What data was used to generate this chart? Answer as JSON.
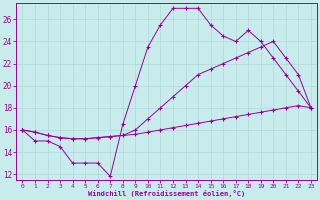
{
  "xlabel": "Windchill (Refroidissement éolien,°C)",
  "bg_color": "#c8ecec",
  "line_color": "#990099",
  "grid_color": "#b0d8d8",
  "xlim_min": -0.5,
  "xlim_max": 23.5,
  "ylim_min": 11.5,
  "ylim_max": 27.5,
  "yticks": [
    12,
    14,
    16,
    18,
    20,
    22,
    24,
    26
  ],
  "xticks": [
    0,
    1,
    2,
    3,
    4,
    5,
    6,
    7,
    8,
    9,
    10,
    11,
    12,
    13,
    14,
    15,
    16,
    17,
    18,
    19,
    20,
    21,
    22,
    23
  ],
  "line1_x": [
    0,
    1,
    2,
    3,
    4,
    5,
    6,
    7,
    8,
    9,
    10,
    11,
    12,
    13,
    14,
    15,
    16,
    17,
    18,
    19,
    20,
    21,
    22,
    23
  ],
  "line1_y": [
    16.0,
    15.0,
    15.0,
    14.5,
    13.0,
    13.0,
    13.0,
    11.8,
    16.5,
    20.0,
    23.5,
    25.5,
    27.0,
    27.0,
    27.0,
    25.5,
    24.5,
    24.0,
    25.0,
    24.0,
    22.5,
    21.0,
    19.5,
    18.0
  ],
  "line2_x": [
    0,
    1,
    2,
    3,
    4,
    5,
    6,
    7,
    8,
    9,
    10,
    11,
    12,
    13,
    14,
    15,
    16,
    17,
    18,
    19,
    20,
    21,
    22,
    23
  ],
  "line2_y": [
    16.0,
    15.8,
    15.5,
    15.3,
    15.2,
    15.2,
    15.3,
    15.4,
    15.5,
    15.6,
    15.8,
    16.0,
    16.2,
    16.4,
    16.6,
    16.8,
    17.0,
    17.2,
    17.4,
    17.6,
    17.8,
    18.0,
    18.2,
    18.0
  ],
  "line3_x": [
    0,
    1,
    2,
    3,
    4,
    5,
    6,
    7,
    8,
    9,
    10,
    11,
    12,
    13,
    14,
    15,
    16,
    17,
    18,
    19,
    20,
    21,
    22,
    23
  ],
  "line3_y": [
    16.0,
    15.8,
    15.5,
    15.3,
    15.2,
    15.2,
    15.3,
    15.4,
    15.5,
    16.0,
    17.0,
    18.0,
    19.0,
    20.0,
    21.0,
    21.5,
    22.0,
    22.5,
    23.0,
    23.5,
    24.0,
    22.5,
    21.0,
    18.0
  ]
}
